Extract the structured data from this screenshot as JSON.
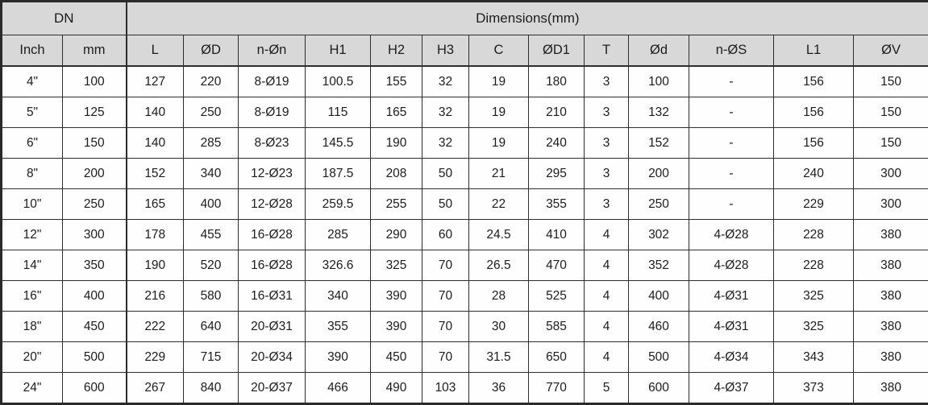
{
  "table": {
    "group_headers": [
      {
        "label": "DN",
        "colspan": 2
      },
      {
        "label": "Dimensions(mm)",
        "colspan": 13
      }
    ],
    "columns": [
      "Inch",
      "mm",
      "L",
      "ØD",
      "n-Øn",
      "H1",
      "H2",
      "H3",
      "C",
      "ØD1",
      "T",
      "Ød",
      "n-ØS",
      "L1",
      "ØV"
    ],
    "rows": [
      [
        "4\"",
        "100",
        "127",
        "220",
        "8-Ø19",
        "100.5",
        "155",
        "32",
        "19",
        "180",
        "3",
        "100",
        "-",
        "156",
        "150"
      ],
      [
        "5\"",
        "125",
        "140",
        "250",
        "8-Ø19",
        "115",
        "165",
        "32",
        "19",
        "210",
        "3",
        "132",
        "-",
        "156",
        "150"
      ],
      [
        "6\"",
        "150",
        "140",
        "285",
        "8-Ø23",
        "145.5",
        "190",
        "32",
        "19",
        "240",
        "3",
        "152",
        "-",
        "156",
        "150"
      ],
      [
        "8\"",
        "200",
        "152",
        "340",
        "12-Ø23",
        "187.5",
        "208",
        "50",
        "21",
        "295",
        "3",
        "200",
        "-",
        "240",
        "300"
      ],
      [
        "10\"",
        "250",
        "165",
        "400",
        "12-Ø28",
        "259.5",
        "255",
        "50",
        "22",
        "355",
        "3",
        "250",
        "-",
        "229",
        "300"
      ],
      [
        "12\"",
        "300",
        "178",
        "455",
        "16-Ø28",
        "285",
        "290",
        "60",
        "24.5",
        "410",
        "4",
        "302",
        "4-Ø28",
        "228",
        "380"
      ],
      [
        "14\"",
        "350",
        "190",
        "520",
        "16-Ø28",
        "326.6",
        "325",
        "70",
        "26.5",
        "470",
        "4",
        "352",
        "4-Ø28",
        "228",
        "380"
      ],
      [
        "16\"",
        "400",
        "216",
        "580",
        "16-Ø31",
        "340",
        "390",
        "70",
        "28",
        "525",
        "4",
        "400",
        "4-Ø31",
        "325",
        "380"
      ],
      [
        "18\"",
        "450",
        "222",
        "640",
        "20-Ø31",
        "355",
        "390",
        "70",
        "30",
        "585",
        "4",
        "460",
        "4-Ø31",
        "325",
        "380"
      ],
      [
        "20\"",
        "500",
        "229",
        "715",
        "20-Ø34",
        "390",
        "450",
        "70",
        "31.5",
        "650",
        "4",
        "500",
        "4-Ø34",
        "343",
        "380"
      ],
      [
        "24\"",
        "600",
        "267",
        "840",
        "20-Ø37",
        "466",
        "490",
        "103",
        "36",
        "770",
        "5",
        "600",
        "4-Ø37",
        "373",
        "380"
      ]
    ],
    "colors": {
      "header_bg": "#d8d8d8",
      "row_bg": "#fefefe",
      "border": "#2d2d2d"
    }
  }
}
